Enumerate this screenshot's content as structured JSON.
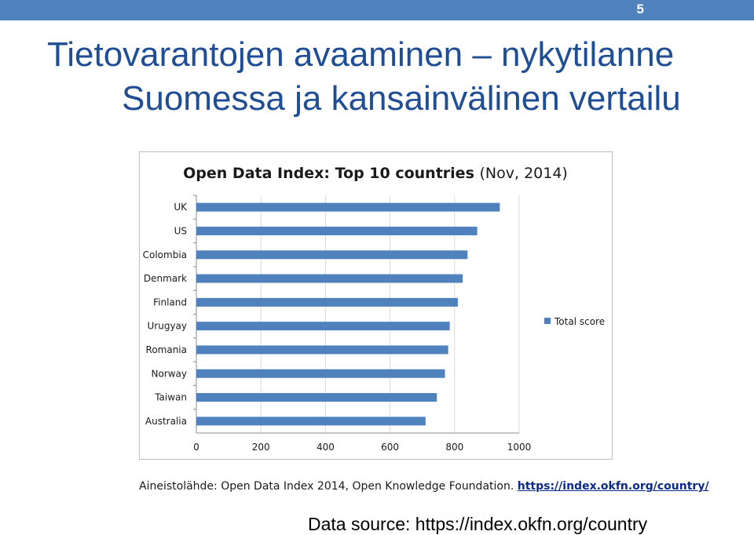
{
  "slide": {
    "number": "5",
    "title_line1": "Tietovarantojen avaaminen – nykytilanne",
    "title_line2": "Suomessa ja kansainvälinen vertailu",
    "source_prefix": "Aineistolähde: Open Data Index 2014, Open Knowledge Foundation.",
    "source_link": "https://index.okfn.org/country/",
    "data_source": "Data source: https://index.okfn.org/country"
  },
  "colors": {
    "topbar": "#4f81bd",
    "title": "#1f4e95",
    "bar": "#4f81bd"
  },
  "chart_data": {
    "type": "bar",
    "orientation": "horizontal",
    "title_bold": "Open Data Index: Top 10 countries",
    "title_rest": "(Nov, 2014)",
    "categories": [
      "UK",
      "US",
      "Colombia",
      "Denmark",
      "Finland",
      "Urugyay",
      "Romania",
      "Norway",
      "Taiwan",
      "Australia"
    ],
    "series": [
      {
        "name": "Total score",
        "values": [
          940,
          870,
          840,
          825,
          810,
          785,
          780,
          770,
          745,
          710
        ]
      }
    ],
    "xlim": [
      0,
      1000
    ],
    "xticks": [
      "0",
      "200",
      "400",
      "600",
      "800",
      "1000"
    ],
    "grid": true,
    "legend_position": "right"
  }
}
